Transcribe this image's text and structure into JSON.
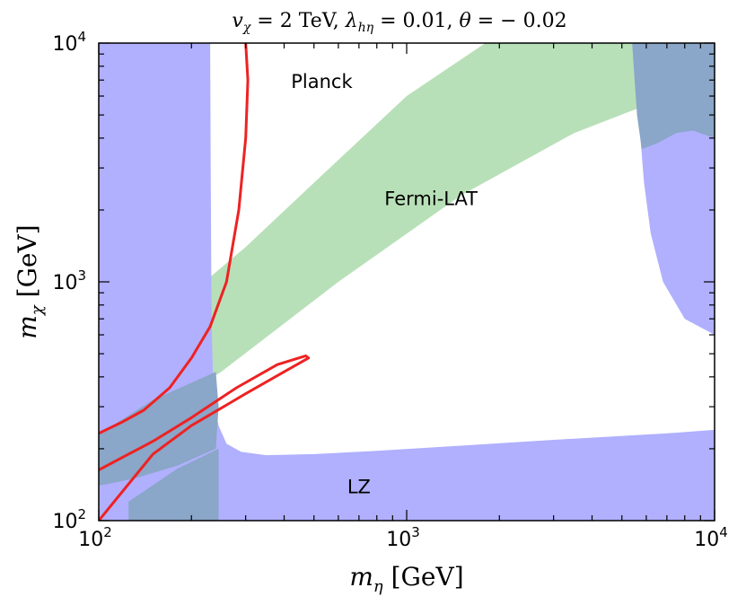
{
  "chart_data": {
    "type": "area",
    "title": {
      "v_label": "v",
      "v_sub": "χ",
      "v_value": " = 2 TeV,  ",
      "lambda_label": "λ",
      "lambda_sub": "hη",
      "lambda_value": " = 0.01,  ",
      "theta_label": "θ",
      "theta_value": " = − 0.02"
    },
    "xlabel": {
      "symbol": "m",
      "sub": "η",
      "unit": " [GeV]"
    },
    "ylabel": {
      "symbol": "m",
      "sub": "χ",
      "unit": " [GeV]"
    },
    "xscale": "log",
    "yscale": "log",
    "xlim": [
      100,
      10000
    ],
    "ylim": [
      100,
      10000
    ],
    "x_ticks": [
      {
        "value": 100,
        "base": "10",
        "exp": "2"
      },
      {
        "value": 1000,
        "base": "10",
        "exp": "3"
      },
      {
        "value": 10000,
        "base": "10",
        "exp": "4"
      }
    ],
    "y_ticks": [
      {
        "value": 100,
        "base": "10",
        "exp": "2"
      },
      {
        "value": 1000,
        "base": "10",
        "exp": "3"
      },
      {
        "value": 10000,
        "base": "10",
        "exp": "4"
      }
    ],
    "grid": false,
    "colors": {
      "lz": "#b0b0ff",
      "fermi": "#b8e0b8",
      "overlap": "#8aa6c8",
      "planck": "#ee2222"
    },
    "regions": [
      {
        "name": "LZ",
        "points_bottom": [
          [
            100,
            100
          ],
          [
            250,
            100
          ],
          [
            10000,
            100
          ],
          [
            10000,
            240
          ],
          [
            7000,
            232
          ],
          [
            3000,
            218
          ],
          [
            1500,
            206
          ],
          [
            800,
            196
          ],
          [
            500,
            190
          ],
          [
            350,
            188
          ],
          [
            290,
            194
          ],
          [
            260,
            210
          ],
          [
            245,
            250
          ],
          [
            238,
            300
          ],
          [
            235,
            400
          ],
          [
            233,
            600
          ],
          [
            232,
            1000
          ],
          [
            231,
            3000
          ],
          [
            230,
            10000
          ],
          [
            100,
            10000
          ]
        ],
        "points_right": [
          [
            5400,
            10000
          ],
          [
            10000,
            10000
          ],
          [
            10000,
            600
          ],
          [
            8000,
            700
          ],
          [
            6800,
            1000
          ],
          [
            6200,
            1600
          ],
          [
            5900,
            2600
          ],
          [
            5700,
            4500
          ],
          [
            5500,
            7000
          ]
        ]
      },
      {
        "name": "Fermi-LAT",
        "points": [
          [
            100,
            200
          ],
          [
            250,
            420
          ],
          [
            600,
            1000
          ],
          [
            1500,
            2300
          ],
          [
            3500,
            4200
          ],
          [
            6000,
            5500
          ],
          [
            10000,
            6200
          ],
          [
            10000,
            10000
          ],
          [
            1800,
            10000
          ],
          [
            1000,
            6000
          ],
          [
            500,
            2600
          ],
          [
            300,
            1400
          ],
          [
            200,
            900
          ],
          [
            150,
            600
          ],
          [
            120,
            400
          ],
          [
            100,
            300
          ]
        ],
        "notch": [
          [
            1800,
            1750
          ],
          [
            2200,
            2000
          ],
          [
            3400,
            3300
          ],
          [
            2000,
            2200
          ],
          [
            1700,
            1900
          ]
        ]
      },
      {
        "name": "LZ-Fermi-overlap",
        "points_lower_left": [
          [
            100,
            230
          ],
          [
            150,
            320
          ],
          [
            240,
            420
          ],
          [
            245,
            300
          ],
          [
            240,
            200
          ],
          [
            180,
            170
          ],
          [
            130,
            150
          ],
          [
            100,
            140
          ]
        ],
        "points_bottom_fill": [
          [
            125,
            100
          ],
          [
            245,
            100
          ],
          [
            245,
            200
          ],
          [
            180,
            165
          ],
          [
            125,
            120
          ]
        ],
        "points_top_right": [
          [
            5400,
            10000
          ],
          [
            10000,
            10000
          ],
          [
            10000,
            4000
          ],
          [
            8500,
            4300
          ],
          [
            7500,
            4200
          ],
          [
            6500,
            3800
          ],
          [
            5800,
            3600
          ],
          [
            5600,
            5000
          ]
        ]
      }
    ],
    "contours": [
      {
        "name": "Planck",
        "points": [
          [
            100,
            232
          ],
          [
            120,
            260
          ],
          [
            140,
            290
          ],
          [
            170,
            360
          ],
          [
            200,
            480
          ],
          [
            230,
            650
          ],
          [
            260,
            1000
          ],
          [
            285,
            2000
          ],
          [
            300,
            4000
          ],
          [
            305,
            7000
          ],
          [
            300,
            10000
          ]
        ]
      },
      {
        "name": "Planck-inner",
        "points": [
          [
            100,
            163
          ],
          [
            125,
            190
          ],
          [
            135,
            200
          ],
          [
            150,
            215
          ],
          [
            200,
            270
          ],
          [
            280,
            360
          ],
          [
            380,
            450
          ],
          [
            470,
            490
          ],
          [
            480,
            480
          ],
          [
            400,
            420
          ],
          [
            300,
            340
          ],
          [
            200,
            250
          ],
          [
            150,
            190
          ],
          [
            100,
            100
          ]
        ]
      }
    ],
    "annotations": [
      {
        "text": "Planck",
        "x": 530,
        "y": 6500
      },
      {
        "text": "Fermi-LAT",
        "x": 1200,
        "y": 2100
      },
      {
        "text": "LZ",
        "x": 700,
        "y": 130
      }
    ]
  }
}
